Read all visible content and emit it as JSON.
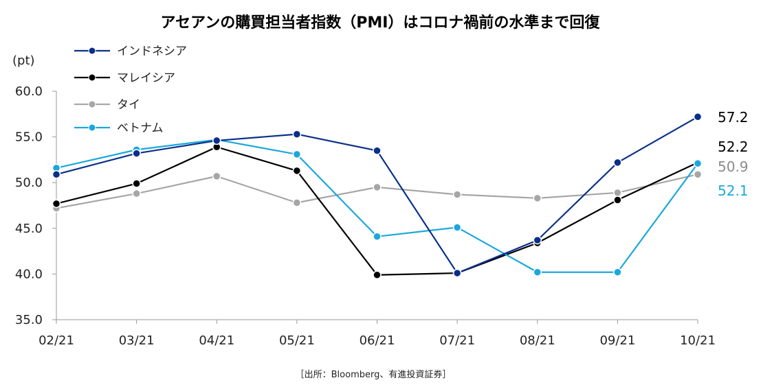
{
  "chart_data": {
    "type": "line",
    "title": "アセアンの購買担当者指数（PMI）はコロナ禍前の水準まで回復",
    "ylabel": "(pt)",
    "xlabel": "",
    "categories": [
      "02/21",
      "03/21",
      "04/21",
      "05/21",
      "06/21",
      "07/21",
      "08/21",
      "09/21",
      "10/21"
    ],
    "ylim": [
      35.0,
      60.0
    ],
    "yticks": [
      "35.0",
      "40.0",
      "45.0",
      "50.0",
      "55.0",
      "60.0"
    ],
    "grid": false,
    "legend_position": "top-left",
    "series": [
      {
        "name": "インドネシア",
        "color": "#0a2f8a",
        "values": [
          50.9,
          53.2,
          54.6,
          55.3,
          53.5,
          40.1,
          43.7,
          52.2,
          57.2
        ],
        "end_label": "57.2"
      },
      {
        "name": "マレイシア",
        "color": "#000000",
        "values": [
          47.7,
          49.9,
          53.9,
          51.3,
          39.9,
          40.1,
          43.4,
          48.1,
          52.2
        ],
        "end_label": "52.2"
      },
      {
        "name": "タイ",
        "color": "#a6a6a6",
        "values": [
          47.2,
          48.8,
          50.7,
          47.8,
          49.5,
          48.7,
          48.3,
          48.9,
          50.9
        ],
        "end_label": "50.9"
      },
      {
        "name": "ベトナム",
        "color": "#1aa7dc",
        "values": [
          51.6,
          53.6,
          54.7,
          53.1,
          44.1,
          45.1,
          40.2,
          40.2,
          52.1
        ],
        "end_label": "52.1"
      }
    ],
    "source": "［出所：Bloomberg、有進投資証券］"
  }
}
